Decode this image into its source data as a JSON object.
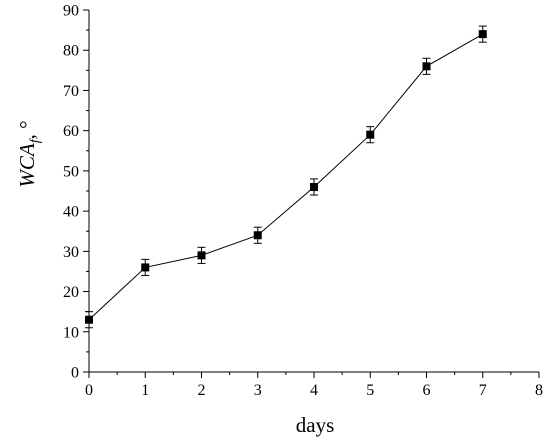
{
  "chart_data": {
    "type": "line",
    "xlabel": "days",
    "ylabel": "WCA",
    "ylabel_subscript": "f",
    "ylabel_unit": ", °",
    "xlim": [
      0,
      8
    ],
    "ylim": [
      0,
      90
    ],
    "x_ticks": [
      0,
      1,
      2,
      3,
      4,
      5,
      6,
      7,
      8
    ],
    "y_ticks": [
      0,
      10,
      20,
      30,
      40,
      50,
      60,
      70,
      80,
      90
    ],
    "grid": false,
    "marker": "square",
    "series": [
      {
        "x": [
          0,
          1,
          2,
          3,
          4,
          5,
          6,
          7
        ],
        "y": [
          13,
          26,
          29,
          34,
          46,
          59,
          76,
          84
        ],
        "error": [
          2,
          2,
          2,
          2,
          2,
          2,
          2,
          2
        ]
      }
    ],
    "colors": {
      "line": "#000000",
      "marker": "#000000",
      "axis": "#000000"
    }
  }
}
